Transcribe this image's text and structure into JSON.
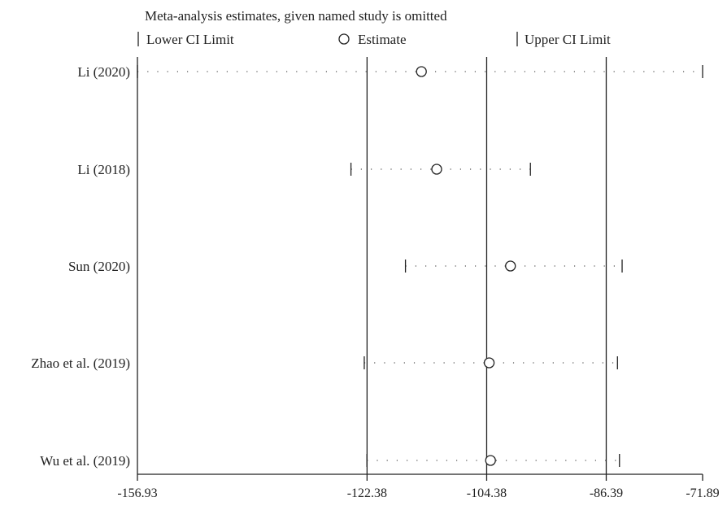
{
  "chart_data": {
    "type": "forest",
    "title": "Meta-analysis estimates, given named study is omitted",
    "legend": [
      {
        "marker": "bar",
        "label": "Lower CI Limit"
      },
      {
        "marker": "circle",
        "label": "Estimate"
      },
      {
        "marker": "bar",
        "label": "Upper CI Limit"
      }
    ],
    "x_ticks": [
      "-156.93",
      "-122.38",
      "-104.38",
      "-86.39",
      "-71.89"
    ],
    "xlim": [
      -156.93,
      -71.89
    ],
    "reference_lines": [
      -122.38,
      -104.38,
      -86.39
    ],
    "studies": [
      {
        "name": "Li (2020)",
        "lower": -156.93,
        "estimate": -114.2,
        "upper": -71.89
      },
      {
        "name": "Li (2018)",
        "lower": -124.8,
        "estimate": -111.9,
        "upper": -97.8
      },
      {
        "name": "Sun (2020)",
        "lower": -116.6,
        "estimate": -100.8,
        "upper": -84.0
      },
      {
        "name": "Zhao et al. (2019)",
        "lower": -122.8,
        "estimate": -104.0,
        "upper": -84.7
      },
      {
        "name": "Wu et al. (2019)",
        "lower": -122.4,
        "estimate": -103.8,
        "upper": -84.4
      }
    ],
    "grid": false
  }
}
